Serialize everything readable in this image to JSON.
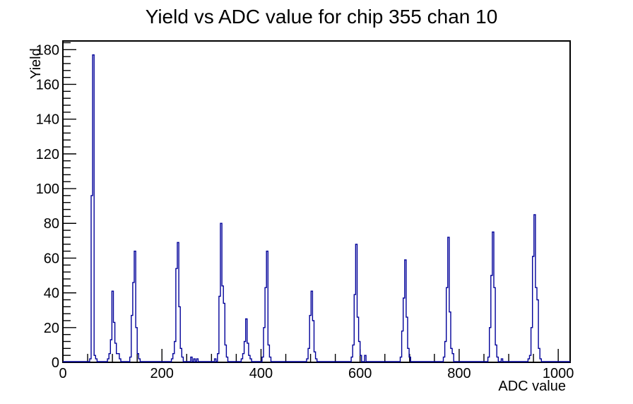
{
  "chart_data": {
    "type": "bar",
    "style": "histogram-step-outline",
    "title": "Yield vs ADC value for chip 355 chan 10",
    "xlabel": "ADC value",
    "ylabel": "Yield",
    "xlim": [
      0,
      1024
    ],
    "ylim": [
      0,
      185
    ],
    "x_major_ticks": [
      0,
      200,
      400,
      600,
      800,
      1000
    ],
    "x_minor_step": 50,
    "y_major_ticks": [
      0,
      20,
      40,
      60,
      80,
      100,
      120,
      140,
      160,
      180
    ],
    "y_minor_step": 4,
    "grid": false,
    "legend": "none",
    "line_color": "#000099",
    "frame_color": "#000000",
    "background_color": "#ffffff",
    "bin_width": 3,
    "bins": [
      [
        55,
        2
      ],
      [
        58,
        96
      ],
      [
        61,
        177
      ],
      [
        64,
        4
      ],
      [
        67,
        2
      ],
      [
        91,
        2
      ],
      [
        94,
        5
      ],
      [
        97,
        13
      ],
      [
        100,
        41
      ],
      [
        103,
        23
      ],
      [
        106,
        11
      ],
      [
        109,
        5
      ],
      [
        112,
        5
      ],
      [
        115,
        2
      ],
      [
        135,
        3
      ],
      [
        138,
        27
      ],
      [
        141,
        46
      ],
      [
        144,
        64
      ],
      [
        147,
        20
      ],
      [
        150,
        5
      ],
      [
        153,
        2
      ],
      [
        219,
        2
      ],
      [
        222,
        5
      ],
      [
        225,
        12
      ],
      [
        228,
        54
      ],
      [
        231,
        69
      ],
      [
        234,
        32
      ],
      [
        237,
        8
      ],
      [
        240,
        3
      ],
      [
        258,
        3
      ],
      [
        264,
        2
      ],
      [
        270,
        2
      ],
      [
        306,
        2
      ],
      [
        312,
        5
      ],
      [
        315,
        38
      ],
      [
        318,
        80
      ],
      [
        321,
        44
      ],
      [
        324,
        34
      ],
      [
        327,
        10
      ],
      [
        330,
        3
      ],
      [
        360,
        2
      ],
      [
        363,
        5
      ],
      [
        366,
        12
      ],
      [
        369,
        25
      ],
      [
        372,
        11
      ],
      [
        375,
        4
      ],
      [
        378,
        2
      ],
      [
        402,
        3
      ],
      [
        405,
        20
      ],
      [
        408,
        43
      ],
      [
        411,
        64
      ],
      [
        414,
        10
      ],
      [
        417,
        3
      ],
      [
        494,
        2
      ],
      [
        497,
        8
      ],
      [
        500,
        27
      ],
      [
        503,
        41
      ],
      [
        506,
        24
      ],
      [
        509,
        6
      ],
      [
        512,
        2
      ],
      [
        584,
        3
      ],
      [
        587,
        10
      ],
      [
        590,
        39
      ],
      [
        593,
        68
      ],
      [
        596,
        26
      ],
      [
        599,
        12
      ],
      [
        602,
        4
      ],
      [
        611,
        4
      ],
      [
        681,
        3
      ],
      [
        684,
        18
      ],
      [
        687,
        37
      ],
      [
        690,
        59
      ],
      [
        693,
        26
      ],
      [
        696,
        8
      ],
      [
        699,
        3
      ],
      [
        770,
        3
      ],
      [
        773,
        12
      ],
      [
        776,
        43
      ],
      [
        779,
        72
      ],
      [
        782,
        29
      ],
      [
        785,
        8
      ],
      [
        788,
        5
      ],
      [
        860,
        3
      ],
      [
        863,
        20
      ],
      [
        866,
        50
      ],
      [
        869,
        75
      ],
      [
        872,
        43
      ],
      [
        875,
        10
      ],
      [
        878,
        3
      ],
      [
        887,
        2
      ],
      [
        941,
        2
      ],
      [
        944,
        4
      ],
      [
        947,
        20
      ],
      [
        950,
        61
      ],
      [
        953,
        85
      ],
      [
        956,
        43
      ],
      [
        959,
        36
      ],
      [
        962,
        8
      ],
      [
        965,
        2
      ]
    ],
    "peaks": [
      {
        "adc": 61,
        "yield": 177
      },
      {
        "adc": 100,
        "yield": 41
      },
      {
        "adc": 144,
        "yield": 64
      },
      {
        "adc": 231,
        "yield": 69
      },
      {
        "adc": 318,
        "yield": 80
      },
      {
        "adc": 369,
        "yield": 25
      },
      {
        "adc": 411,
        "yield": 64
      },
      {
        "adc": 503,
        "yield": 41
      },
      {
        "adc": 593,
        "yield": 68
      },
      {
        "adc": 690,
        "yield": 59
      },
      {
        "adc": 779,
        "yield": 72
      },
      {
        "adc": 869,
        "yield": 75
      },
      {
        "adc": 953,
        "yield": 85
      }
    ]
  }
}
